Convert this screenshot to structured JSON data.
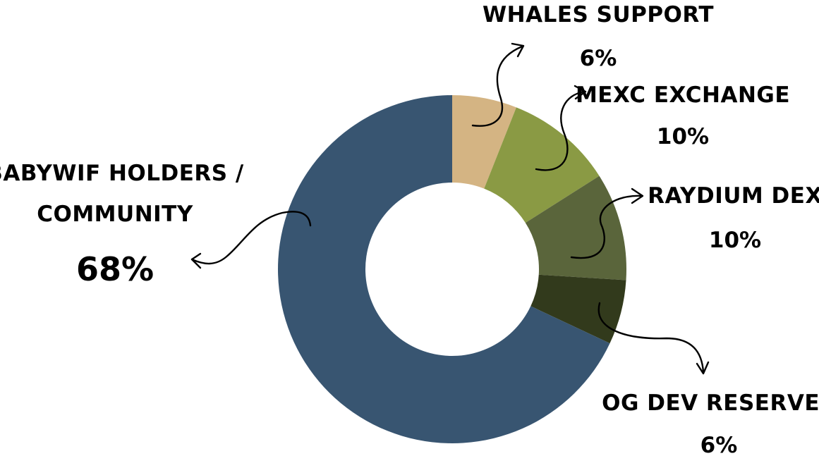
{
  "chart_data": {
    "type": "pie",
    "title": "",
    "donut": true,
    "slices": [
      {
        "label": "WHALES SUPPORT",
        "value": 6,
        "value_label": "6%",
        "color": "#D4B483"
      },
      {
        "label": "MEXC EXCHANGE",
        "value": 10,
        "value_label": "10%",
        "color": "#8A9A44"
      },
      {
        "label": "RAYDIUM DEX",
        "value": 10,
        "value_label": "10%",
        "color": "#5A653B"
      },
      {
        "label": "OG DEV RESERVES",
        "value": 6,
        "value_label": "6%",
        "color": "#323A1C"
      },
      {
        "label_line1": "BABYWIF HOLDERS /",
        "label_line2": "COMMUNITY",
        "value": 68,
        "value_label": "68%",
        "color": "#385571"
      }
    ]
  }
}
